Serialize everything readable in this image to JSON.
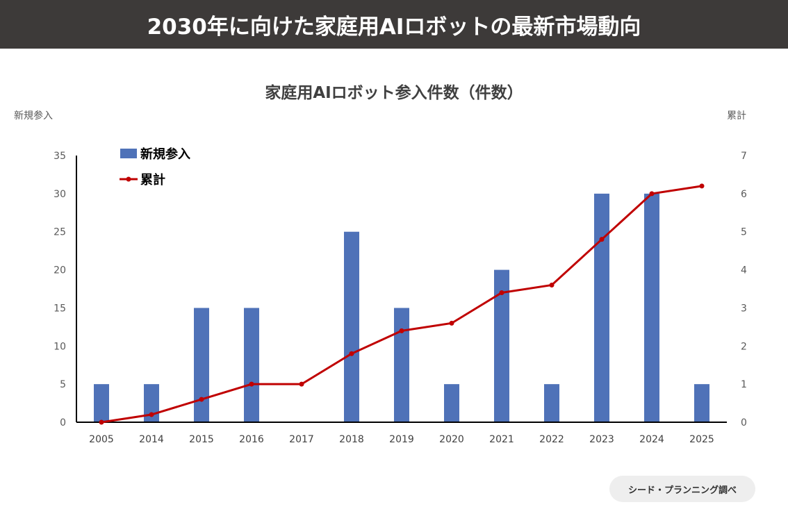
{
  "header": {
    "title": "2030年に向けた家庭用AIロボットの最新市場動向"
  },
  "source": "シード・プランニング調べ",
  "chart_data": {
    "type": "bar+line",
    "title": "家庭用AIロボット参入件数（件数）",
    "ylabel_left": "新規参入",
    "ylabel_right": "累計",
    "categories": [
      "2005",
      "2014",
      "2015",
      "2016",
      "2017",
      "2018",
      "2019",
      "2020",
      "2021",
      "2022",
      "2023",
      "2024",
      "2025"
    ],
    "series": [
      {
        "name": "新規参入",
        "type": "bar",
        "axis": "left",
        "color": "#4f72b8",
        "values": [
          5,
          5,
          15,
          15,
          0,
          25,
          15,
          5,
          20,
          5,
          30,
          30,
          5
        ]
      },
      {
        "name": "累計",
        "type": "line",
        "axis": "right",
        "color": "#c00000",
        "values": [
          0,
          0.2,
          0.6,
          1.0,
          1.0,
          1.8,
          2.4,
          2.6,
          3.4,
          3.6,
          4.8,
          6.0,
          6.2
        ]
      }
    ],
    "ylim_left": [
      0,
      35
    ],
    "yticks_left": [
      "0",
      "5",
      "10",
      "15",
      "20",
      "25",
      "30",
      "35"
    ],
    "ylim_right": [
      0,
      7
    ],
    "yticks_right": [
      "0",
      "1",
      "2",
      "3",
      "4",
      "5",
      "6",
      "7"
    ],
    "grid": false,
    "legend": "top-left"
  }
}
